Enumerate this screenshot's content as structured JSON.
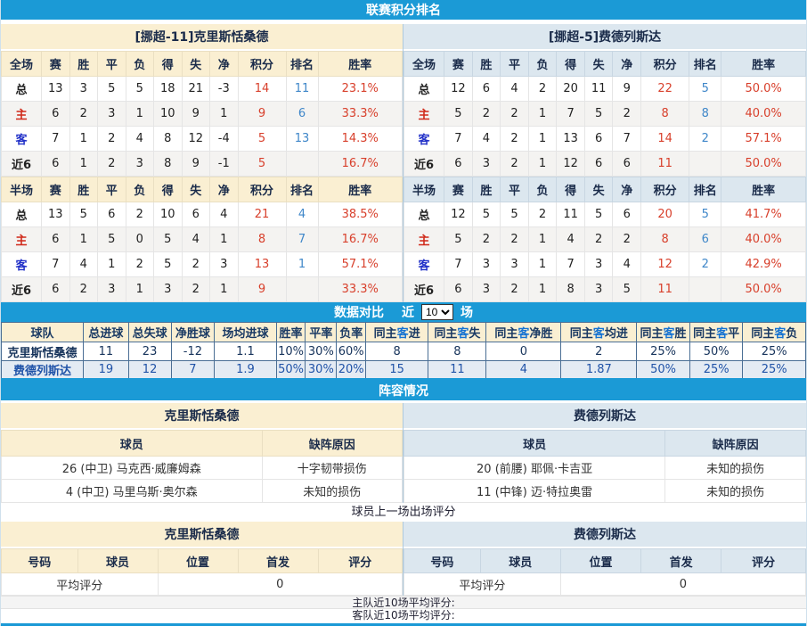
{
  "page": {
    "bar1": "联赛积分排名",
    "bar2": {
      "title": "数据对比",
      "prefix": "近",
      "select_value": "10",
      "suffix": "场"
    },
    "bar3": "阵容情况",
    "ratings_caption": "球员上一场出场评分",
    "footer": {
      "home": "主队近10场平均评分:",
      "away": "客队近10场平均评分:"
    }
  },
  "league": {
    "left": {
      "title": "[挪超-11]克里斯恬桑德",
      "full": {
        "headers": [
          "全场",
          "赛",
          "胜",
          "平",
          "负",
          "得",
          "失",
          "净",
          "积分",
          "排名",
          "胜率"
        ],
        "rows": [
          [
            "总",
            "13",
            "3",
            "5",
            "5",
            "18",
            "21",
            "-3",
            "14",
            "11",
            "23.1%"
          ],
          [
            "主",
            "6",
            "2",
            "3",
            "1",
            "10",
            "9",
            "1",
            "9",
            "6",
            "33.3%"
          ],
          [
            "客",
            "7",
            "1",
            "2",
            "4",
            "8",
            "12",
            "-4",
            "5",
            "13",
            "14.3%"
          ],
          [
            "近6",
            "6",
            "1",
            "2",
            "3",
            "8",
            "9",
            "-1",
            "5",
            "",
            "16.7%"
          ]
        ]
      },
      "half": {
        "headers": [
          "半场",
          "赛",
          "胜",
          "平",
          "负",
          "得",
          "失",
          "净",
          "积分",
          "排名",
          "胜率"
        ],
        "rows": [
          [
            "总",
            "13",
            "5",
            "6",
            "2",
            "10",
            "6",
            "4",
            "21",
            "4",
            "38.5%"
          ],
          [
            "主",
            "6",
            "1",
            "5",
            "0",
            "5",
            "4",
            "1",
            "8",
            "7",
            "16.7%"
          ],
          [
            "客",
            "7",
            "4",
            "1",
            "2",
            "5",
            "2",
            "3",
            "13",
            "1",
            "57.1%"
          ],
          [
            "近6",
            "6",
            "2",
            "3",
            "1",
            "3",
            "2",
            "1",
            "9",
            "",
            "33.3%"
          ]
        ]
      }
    },
    "right": {
      "title": "[挪超-5]费德列斯达",
      "full": {
        "headers": [
          "全场",
          "赛",
          "胜",
          "平",
          "负",
          "得",
          "失",
          "净",
          "积分",
          "排名",
          "胜率"
        ],
        "rows": [
          [
            "总",
            "12",
            "6",
            "4",
            "2",
            "20",
            "11",
            "9",
            "22",
            "5",
            "50.0%"
          ],
          [
            "主",
            "5",
            "2",
            "2",
            "1",
            "7",
            "5",
            "2",
            "8",
            "8",
            "40.0%"
          ],
          [
            "客",
            "7",
            "4",
            "2",
            "1",
            "13",
            "6",
            "7",
            "14",
            "2",
            "57.1%"
          ],
          [
            "近6",
            "6",
            "3",
            "2",
            "1",
            "12",
            "6",
            "6",
            "11",
            "",
            "50.0%"
          ]
        ]
      },
      "half": {
        "headers": [
          "半场",
          "赛",
          "胜",
          "平",
          "负",
          "得",
          "失",
          "净",
          "积分",
          "排名",
          "胜率"
        ],
        "rows": [
          [
            "总",
            "12",
            "5",
            "5",
            "2",
            "11",
            "5",
            "6",
            "20",
            "5",
            "41.7%"
          ],
          [
            "主",
            "5",
            "2",
            "2",
            "1",
            "4",
            "2",
            "2",
            "8",
            "6",
            "40.0%"
          ],
          [
            "客",
            "7",
            "3",
            "3",
            "1",
            "7",
            "3",
            "4",
            "12",
            "2",
            "42.9%"
          ],
          [
            "近6",
            "6",
            "3",
            "2",
            "1",
            "8",
            "3",
            "5",
            "11",
            "",
            "50.0%"
          ]
        ]
      }
    }
  },
  "compare": {
    "headers": [
      "球队",
      "总进球",
      "总失球",
      "净胜球",
      "场均进球",
      "胜率",
      "平率",
      "负率",
      "同主客进",
      "同主客失",
      "同主客净胜",
      "同主客均进",
      "同主客胜",
      "同主客平",
      "同主客负"
    ],
    "rows": [
      [
        "克里斯恬桑德",
        "11",
        "23",
        "-12",
        "1.1",
        "10%",
        "30%",
        "60%",
        "8",
        "8",
        "0",
        "2",
        "25%",
        "50%",
        "25%"
      ],
      [
        "费德列斯达",
        "19",
        "12",
        "7",
        "1.9",
        "50%",
        "30%",
        "20%",
        "15",
        "11",
        "4",
        "1.87",
        "50%",
        "25%",
        "25%"
      ]
    ]
  },
  "lineup": {
    "left": {
      "title": "克里斯恬桑德",
      "headers": [
        "球员",
        "缺阵原因"
      ],
      "rows": [
        [
          "26 (中卫) 马克西·威廉姆森",
          "十字韧带损伤"
        ],
        [
          "4 (中卫) 马里乌斯·奥尔森",
          "未知的损伤"
        ]
      ]
    },
    "right": {
      "title": "费德列斯达",
      "headers": [
        "球员",
        "缺阵原因"
      ],
      "rows": [
        [
          "20 (前腰) 耶佩·卡吉亚",
          "未知的损伤"
        ],
        [
          "11 (中锋) 迈·特拉奥雷",
          "未知的损伤"
        ]
      ]
    }
  },
  "ratings": {
    "left": {
      "title": "克里斯恬桑德",
      "headers": [
        "号码",
        "球员",
        "位置",
        "首发",
        "评分"
      ],
      "avg_label": "平均评分",
      "avg_value": "0"
    },
    "right": {
      "title": "费德列斯达",
      "headers": [
        "号码",
        "球员",
        "位置",
        "首发",
        "评分"
      ],
      "avg_label": "平均评分",
      "avg_value": "0"
    }
  },
  "colors": {
    "bar_blue": "#1b9ad6",
    "home_header_bg": "#faefd2",
    "away_header_bg": "#dce7ef",
    "points_red": "#d8402c",
    "rank_blue": "#3f87c9",
    "home_label_red": "#d02a1a",
    "away_label_blue": "#2231c8",
    "player_link_blue": "#3a6fa8"
  }
}
